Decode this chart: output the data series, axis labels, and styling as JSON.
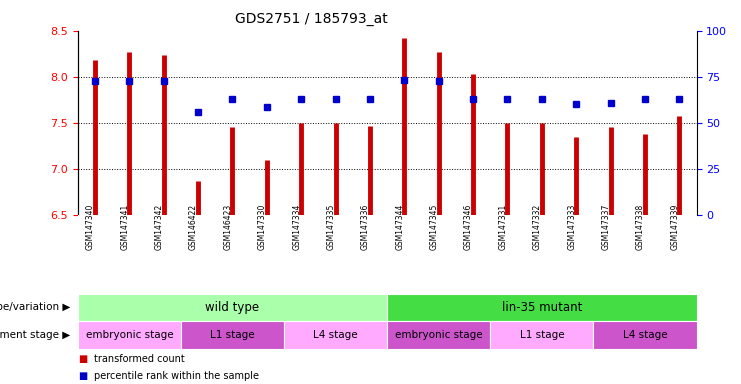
{
  "title": "GDS2751 / 185793_at",
  "samples": [
    "GSM147340",
    "GSM147341",
    "GSM147342",
    "GSM146422",
    "GSM146423",
    "GSM147330",
    "GSM147334",
    "GSM147335",
    "GSM147336",
    "GSM147344",
    "GSM147345",
    "GSM147346",
    "GSM147331",
    "GSM147332",
    "GSM147333",
    "GSM147337",
    "GSM147338",
    "GSM147339"
  ],
  "bar_values": [
    8.18,
    8.27,
    8.24,
    6.87,
    7.46,
    7.1,
    7.5,
    7.5,
    7.47,
    8.42,
    8.27,
    8.03,
    7.5,
    7.5,
    7.35,
    7.45,
    7.38,
    7.57
  ],
  "dot_values": [
    7.95,
    7.95,
    7.95,
    7.62,
    7.76,
    7.67,
    7.76,
    7.76,
    7.76,
    7.97,
    7.95,
    7.76,
    7.76,
    7.76,
    7.7,
    7.72,
    7.76,
    7.76
  ],
  "ylim": [
    6.5,
    8.5
  ],
  "yticks_left": [
    6.5,
    7.0,
    7.5,
    8.0,
    8.5
  ],
  "yticks_right": [
    0,
    25,
    50,
    75,
    100
  ],
  "bar_color": "#CC0000",
  "dot_color": "#0000CC",
  "genotype_groups": [
    {
      "label": "wild type",
      "start": 0,
      "end": 9,
      "color": "#AAFFAA"
    },
    {
      "label": "lin-35 mutant",
      "start": 9,
      "end": 18,
      "color": "#44DD44"
    }
  ],
  "stage_groups": [
    {
      "label": "embryonic stage",
      "start": 0,
      "end": 3,
      "color": "#FFAAFF"
    },
    {
      "label": "L1 stage",
      "start": 3,
      "end": 6,
      "color": "#CC55CC"
    },
    {
      "label": "L4 stage",
      "start": 6,
      "end": 9,
      "color": "#FFAAFF"
    },
    {
      "label": "embryonic stage",
      "start": 9,
      "end": 12,
      "color": "#CC55CC"
    },
    {
      "label": "L1 stage",
      "start": 12,
      "end": 15,
      "color": "#FFAAFF"
    },
    {
      "label": "L4 stage",
      "start": 15,
      "end": 18,
      "color": "#CC55CC"
    }
  ],
  "genotype_label": "genotype/variation",
  "stage_label": "development stage",
  "legend_items": [
    {
      "label": "transformed count",
      "color": "#CC0000"
    },
    {
      "label": "percentile rank within the sample",
      "color": "#0000CC"
    }
  ],
  "sample_bg": "#CCCCCC"
}
